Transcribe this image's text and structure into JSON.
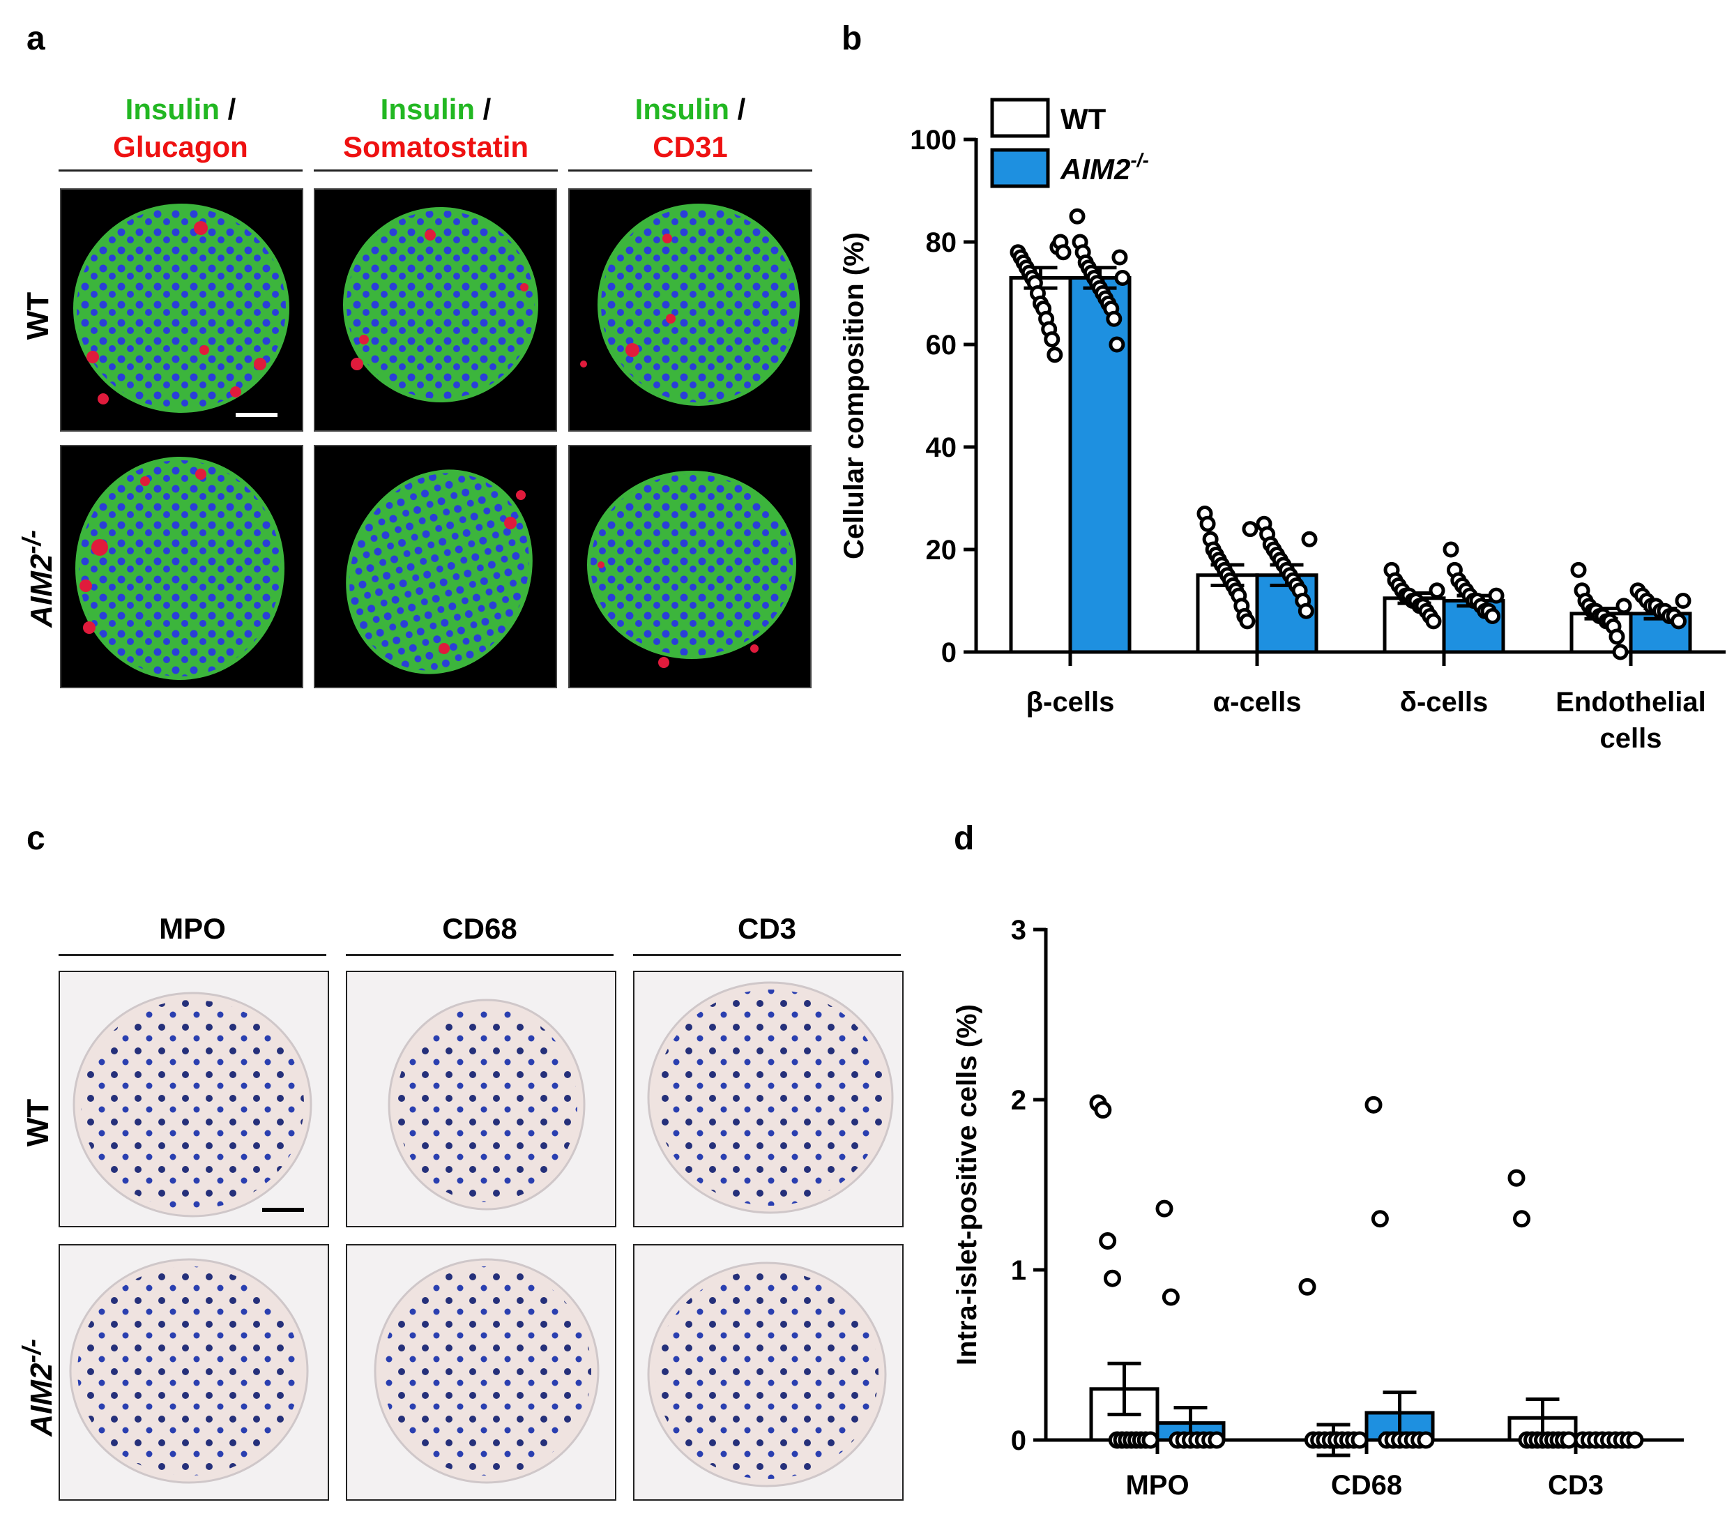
{
  "panels": {
    "a": {
      "letter": "a"
    },
    "b": {
      "letter": "b"
    },
    "c": {
      "letter": "c"
    },
    "d": {
      "letter": "d"
    }
  },
  "panel_a": {
    "columns": [
      {
        "top": "Insulin",
        "slash": " /",
        "bottom": "Glucagon"
      },
      {
        "top": "Insulin",
        "slash": " /",
        "bottom": "Somatostatin"
      },
      {
        "top": "Insulin",
        "slash": " /",
        "bottom": "CD31"
      }
    ],
    "rows": [
      {
        "label": "WT"
      },
      {
        "label": "AIM2",
        "sup": "-/-"
      }
    ]
  },
  "panel_c": {
    "columns": [
      "MPO",
      "CD68",
      "CD3"
    ],
    "rows": [
      {
        "label": "WT"
      },
      {
        "label": "AIM2",
        "sup": "-/-"
      }
    ]
  },
  "colors": {
    "wt": "#ffffff",
    "ko": "#1e90e0",
    "insulin": "#22b722",
    "red_stain": "#ee1111"
  },
  "chart_data": [
    {
      "id": "b",
      "type": "bar",
      "title": "",
      "ylabel": "Cellular composition (%)",
      "ylim": [
        0,
        100
      ],
      "yticks": [
        0,
        20,
        40,
        60,
        80,
        100
      ],
      "categories": [
        "β-cells",
        "α-cells",
        "δ-cells",
        "Endothelial cells"
      ],
      "category_lines": [
        [
          "β-cells"
        ],
        [
          "α-cells"
        ],
        [
          "δ-cells"
        ],
        [
          "Endothelial",
          "cells"
        ]
      ],
      "legend": {
        "position": "top-left",
        "entries": [
          {
            "name": "WT"
          },
          {
            "name": "AIM2",
            "sup": "-/-",
            "italic": true
          }
        ]
      },
      "series": [
        {
          "name": "WT",
          "color": "#ffffff",
          "values": [
            73,
            15,
            10.5,
            7.5
          ],
          "errors": [
            2,
            2,
            1,
            1
          ],
          "points": [
            [
              78,
              77,
              76,
              75,
              74,
              73,
              72,
              70,
              68,
              67,
              65,
              63,
              61,
              58,
              79,
              80,
              78
            ],
            [
              27,
              25,
              22,
              20,
              19,
              18,
              17,
              16,
              15,
              14,
              13,
              12,
              11,
              9,
              7,
              6,
              24
            ],
            [
              16,
              14,
              13,
              12,
              11,
              11,
              10,
              10,
              9,
              9,
              8,
              7,
              6,
              12
            ],
            [
              16,
              12,
              10,
              9,
              8,
              8,
              7,
              7,
              6,
              6,
              5,
              3,
              0,
              9
            ]
          ]
        },
        {
          "name": "AIM2-/-",
          "color": "#1e90e0",
          "values": [
            73,
            15,
            10,
            7.5
          ],
          "errors": [
            2,
            2,
            1,
            1
          ],
          "points": [
            [
              85,
              80,
              78,
              76,
              75,
              74,
              73,
              72,
              71,
              70,
              69,
              68,
              67,
              65,
              60,
              77,
              73
            ],
            [
              25,
              23,
              21,
              20,
              19,
              18,
              17,
              16,
              15,
              14,
              13,
              12,
              10,
              8,
              22
            ],
            [
              20,
              16,
              14,
              13,
              12,
              11,
              10,
              10,
              9,
              8,
              8,
              7,
              11
            ],
            [
              12,
              11,
              10,
              9,
              9,
              8,
              8,
              7,
              7,
              6,
              10
            ]
          ]
        }
      ]
    },
    {
      "id": "d",
      "type": "bar",
      "title": "",
      "ylabel": "Intra-islet-positive cells (%)",
      "ylim": [
        0,
        3
      ],
      "yticks": [
        0,
        1,
        2,
        3
      ],
      "categories": [
        "MPO",
        "CD68",
        "CD3"
      ],
      "series": [
        {
          "name": "WT",
          "color": "#ffffff",
          "values": [
            0.3,
            0,
            0.13
          ],
          "errors": [
            0.15,
            0.09,
            0.11
          ],
          "points": [
            [
              1.98,
              1.94,
              1.17,
              0.95,
              0,
              0,
              0,
              0,
              0,
              0,
              0,
              0
            ],
            [
              0.9,
              0,
              0,
              0,
              0,
              0,
              0,
              0,
              0,
              0
            ],
            [
              1.54,
              1.3,
              0,
              0,
              0,
              0,
              0,
              0,
              0,
              0,
              0
            ]
          ]
        },
        {
          "name": "AIM2-/-",
          "color": "#1e90e0",
          "values": [
            0.1,
            0.16,
            0
          ],
          "errors": [
            0.09,
            0.12,
            0
          ],
          "points": [
            [
              1.36,
              0.84,
              0,
              0,
              0,
              0,
              0,
              0,
              0
            ],
            [
              1.97,
              1.3,
              0,
              0,
              0,
              0,
              0,
              0,
              0
            ],
            [
              0,
              0,
              0,
              0,
              0,
              0,
              0,
              0,
              0
            ]
          ]
        }
      ]
    }
  ]
}
